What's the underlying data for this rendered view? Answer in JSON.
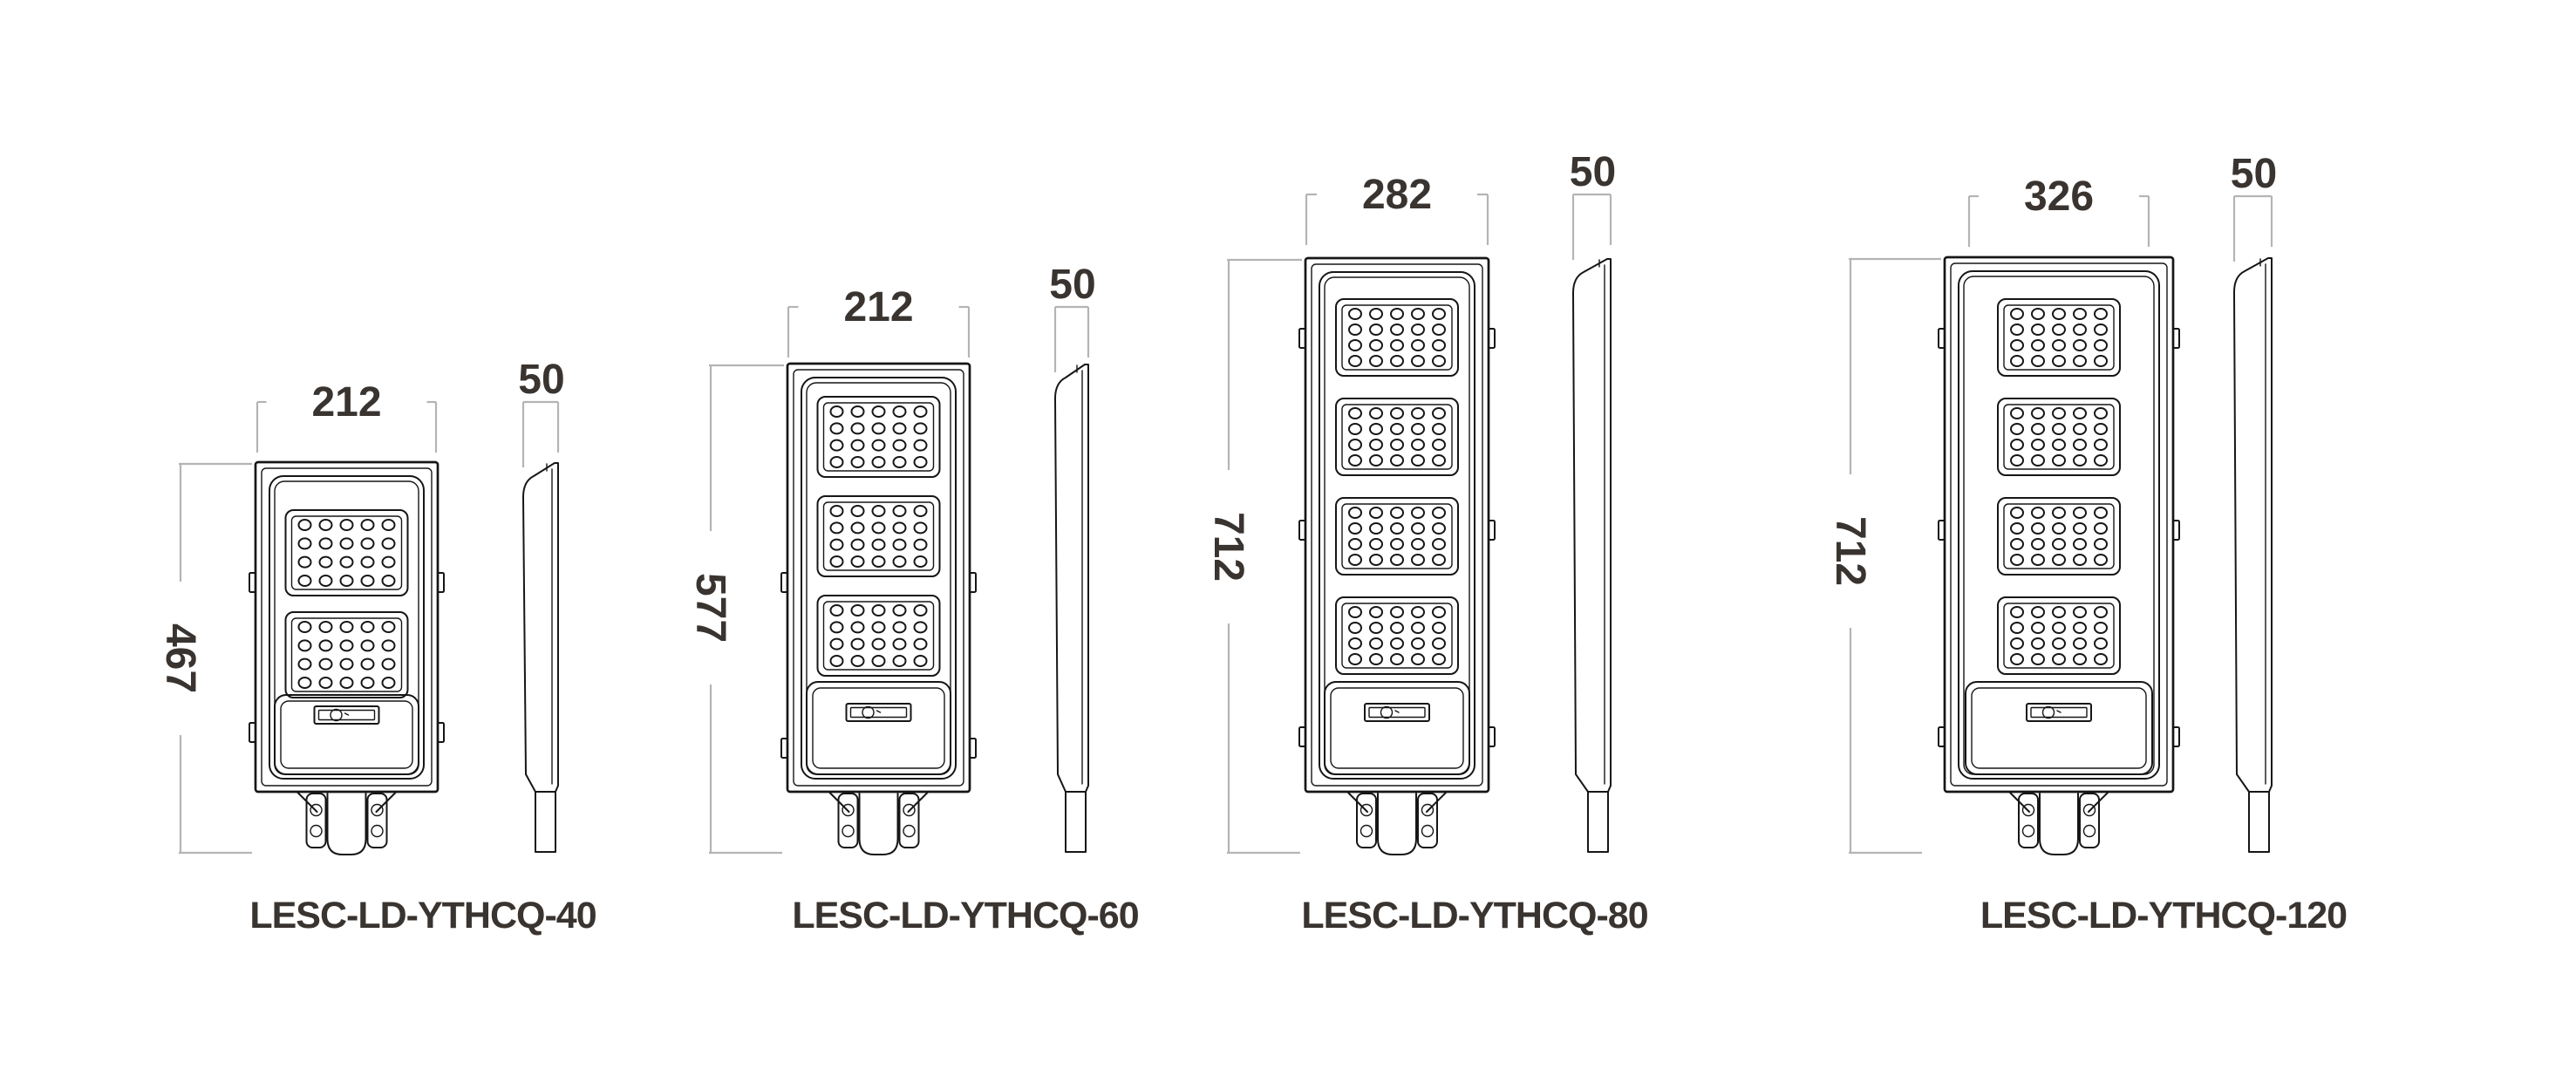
{
  "drawing": {
    "background": "#ffffff",
    "line_color": "#161616",
    "dimension_line_color": "#b4b4b4",
    "text_color": "#3a3430",
    "lights": [
      {
        "model": "LESC-LD-YTHCQ-40",
        "width_mm": "212",
        "height_mm": "467",
        "depth_mm": "50",
        "panel_count": 2,
        "led_rows": 4,
        "led_columns": 5
      },
      {
        "model": "LESC-LD-YTHCQ-60",
        "width_mm": "212",
        "height_mm": "577",
        "depth_mm": "50",
        "panel_count": 3,
        "led_rows": 4,
        "led_columns": 5
      },
      {
        "model": "LESC-LD-YTHCQ-80",
        "width_mm": "282",
        "height_mm": "712",
        "depth_mm": "50",
        "panel_count": 4,
        "led_rows": 4,
        "led_columns": 5
      },
      {
        "model": "LESC-LD-YTHCQ-120",
        "width_mm": "326",
        "height_mm": "712",
        "depth_mm": "50",
        "panel_count": 4,
        "led_rows": 4,
        "led_columns": 5
      }
    ]
  }
}
